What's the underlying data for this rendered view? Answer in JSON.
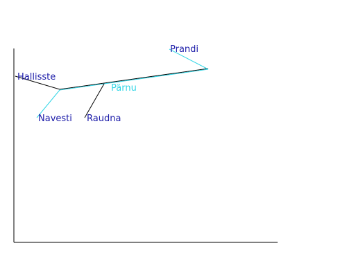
{
  "diagram": {
    "nodes": [
      {
        "id": "hallisste",
        "label": "Hallisste",
        "color": "#1a1aa8"
      },
      {
        "id": "navesti",
        "label": "Navesti",
        "color": "#1a1aa8"
      },
      {
        "id": "raudna",
        "label": "Raudna",
        "color": "#1a1aa8"
      },
      {
        "id": "parnu",
        "label": "Pärnu",
        "color": "#33d6e6"
      },
      {
        "id": "prandi",
        "label": "Prandi",
        "color": "#1a1aa8"
      }
    ],
    "edge_colors": {
      "black": "#000000",
      "cyan": "#33d6e6"
    },
    "axis_color": "#000000"
  }
}
